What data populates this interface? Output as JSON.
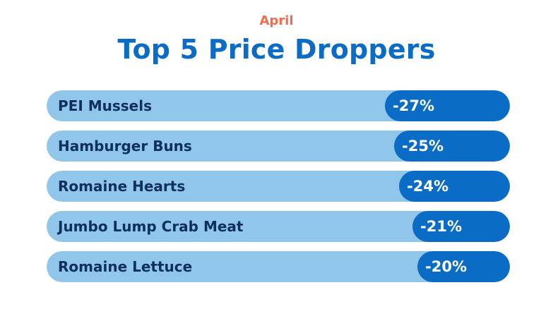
{
  "subtitle": "April",
  "title": "Top 5 Price Droppers",
  "colors": {
    "track": "#8fc6ea",
    "fill": "#0b6cc6",
    "label_text": "#0e2f5a",
    "value_text": "#ffffff",
    "subtitle": "#f26b4d",
    "title": "#0b6cc6"
  },
  "chart_data": {
    "type": "bar",
    "orientation": "horizontal",
    "title": "Top 5 Price Droppers",
    "subtitle": "April",
    "categories": [
      "PEI Mussels",
      "Hamburger Buns",
      "Romaine Hearts",
      "Jumbo Lump Crab Meat",
      "Romaine Lettuce"
    ],
    "values": [
      -27,
      -25,
      -24,
      -21,
      -20
    ],
    "value_labels": [
      "-27%",
      "-25%",
      "-24%",
      "-21%",
      "-20%"
    ],
    "unit": "%",
    "grid": false,
    "legend": "none"
  }
}
